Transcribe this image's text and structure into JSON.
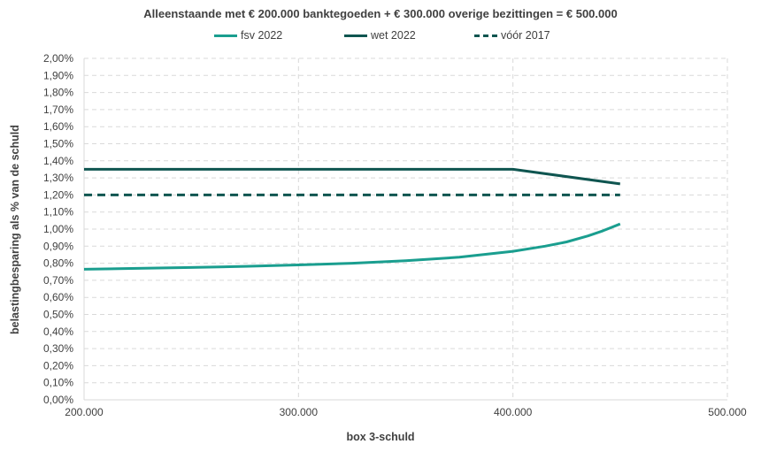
{
  "chart_data": {
    "type": "line",
    "title": "Alleenstaande met € 200.000 banktegoeden + € 300.000 overige bezittingen = € 500.000",
    "xlabel": "box 3-schuld",
    "ylabel": "belastingbesparing als % van de schuld",
    "xlim": [
      200000,
      500000
    ],
    "ylim": [
      0,
      2.0
    ],
    "x_ticks": [
      "200.000",
      "300.000",
      "400.000",
      "500.000"
    ],
    "x_tick_values": [
      200000,
      300000,
      400000,
      500000
    ],
    "y_ticks": [
      "0,00%",
      "0,10%",
      "0,20%",
      "0,30%",
      "0,40%",
      "0,50%",
      "0,60%",
      "0,70%",
      "0,80%",
      "0,90%",
      "1,00%",
      "1,10%",
      "1,20%",
      "1,30%",
      "1,40%",
      "1,50%",
      "1,60%",
      "1,70%",
      "1,80%",
      "1,90%",
      "2,00%"
    ],
    "y_tick_values": [
      0,
      0.1,
      0.2,
      0.3,
      0.4,
      0.5,
      0.6,
      0.7,
      0.8,
      0.9,
      1.0,
      1.1,
      1.2,
      1.3,
      1.4,
      1.5,
      1.6,
      1.7,
      1.8,
      1.9,
      2.0
    ],
    "grid": true,
    "legend_position": "top",
    "series": [
      {
        "name": "fsv 2022",
        "color": "#1a9e8f",
        "style": "solid",
        "x": [
          200000,
          225000,
          250000,
          275000,
          300000,
          325000,
          350000,
          375000,
          400000,
          415000,
          425000,
          435000,
          442000,
          450000
        ],
        "y": [
          0.765,
          0.77,
          0.775,
          0.782,
          0.79,
          0.8,
          0.815,
          0.835,
          0.87,
          0.9,
          0.925,
          0.96,
          0.99,
          1.03
        ]
      },
      {
        "name": "wet 2022",
        "color": "#0f5550",
        "style": "solid",
        "x": [
          200000,
          400000,
          450000
        ],
        "y": [
          1.35,
          1.35,
          1.265
        ]
      },
      {
        "name": "vóór 2017",
        "color": "#0f5550",
        "style": "dashed",
        "x": [
          200000,
          450000
        ],
        "y": [
          1.2,
          1.2
        ]
      }
    ]
  }
}
